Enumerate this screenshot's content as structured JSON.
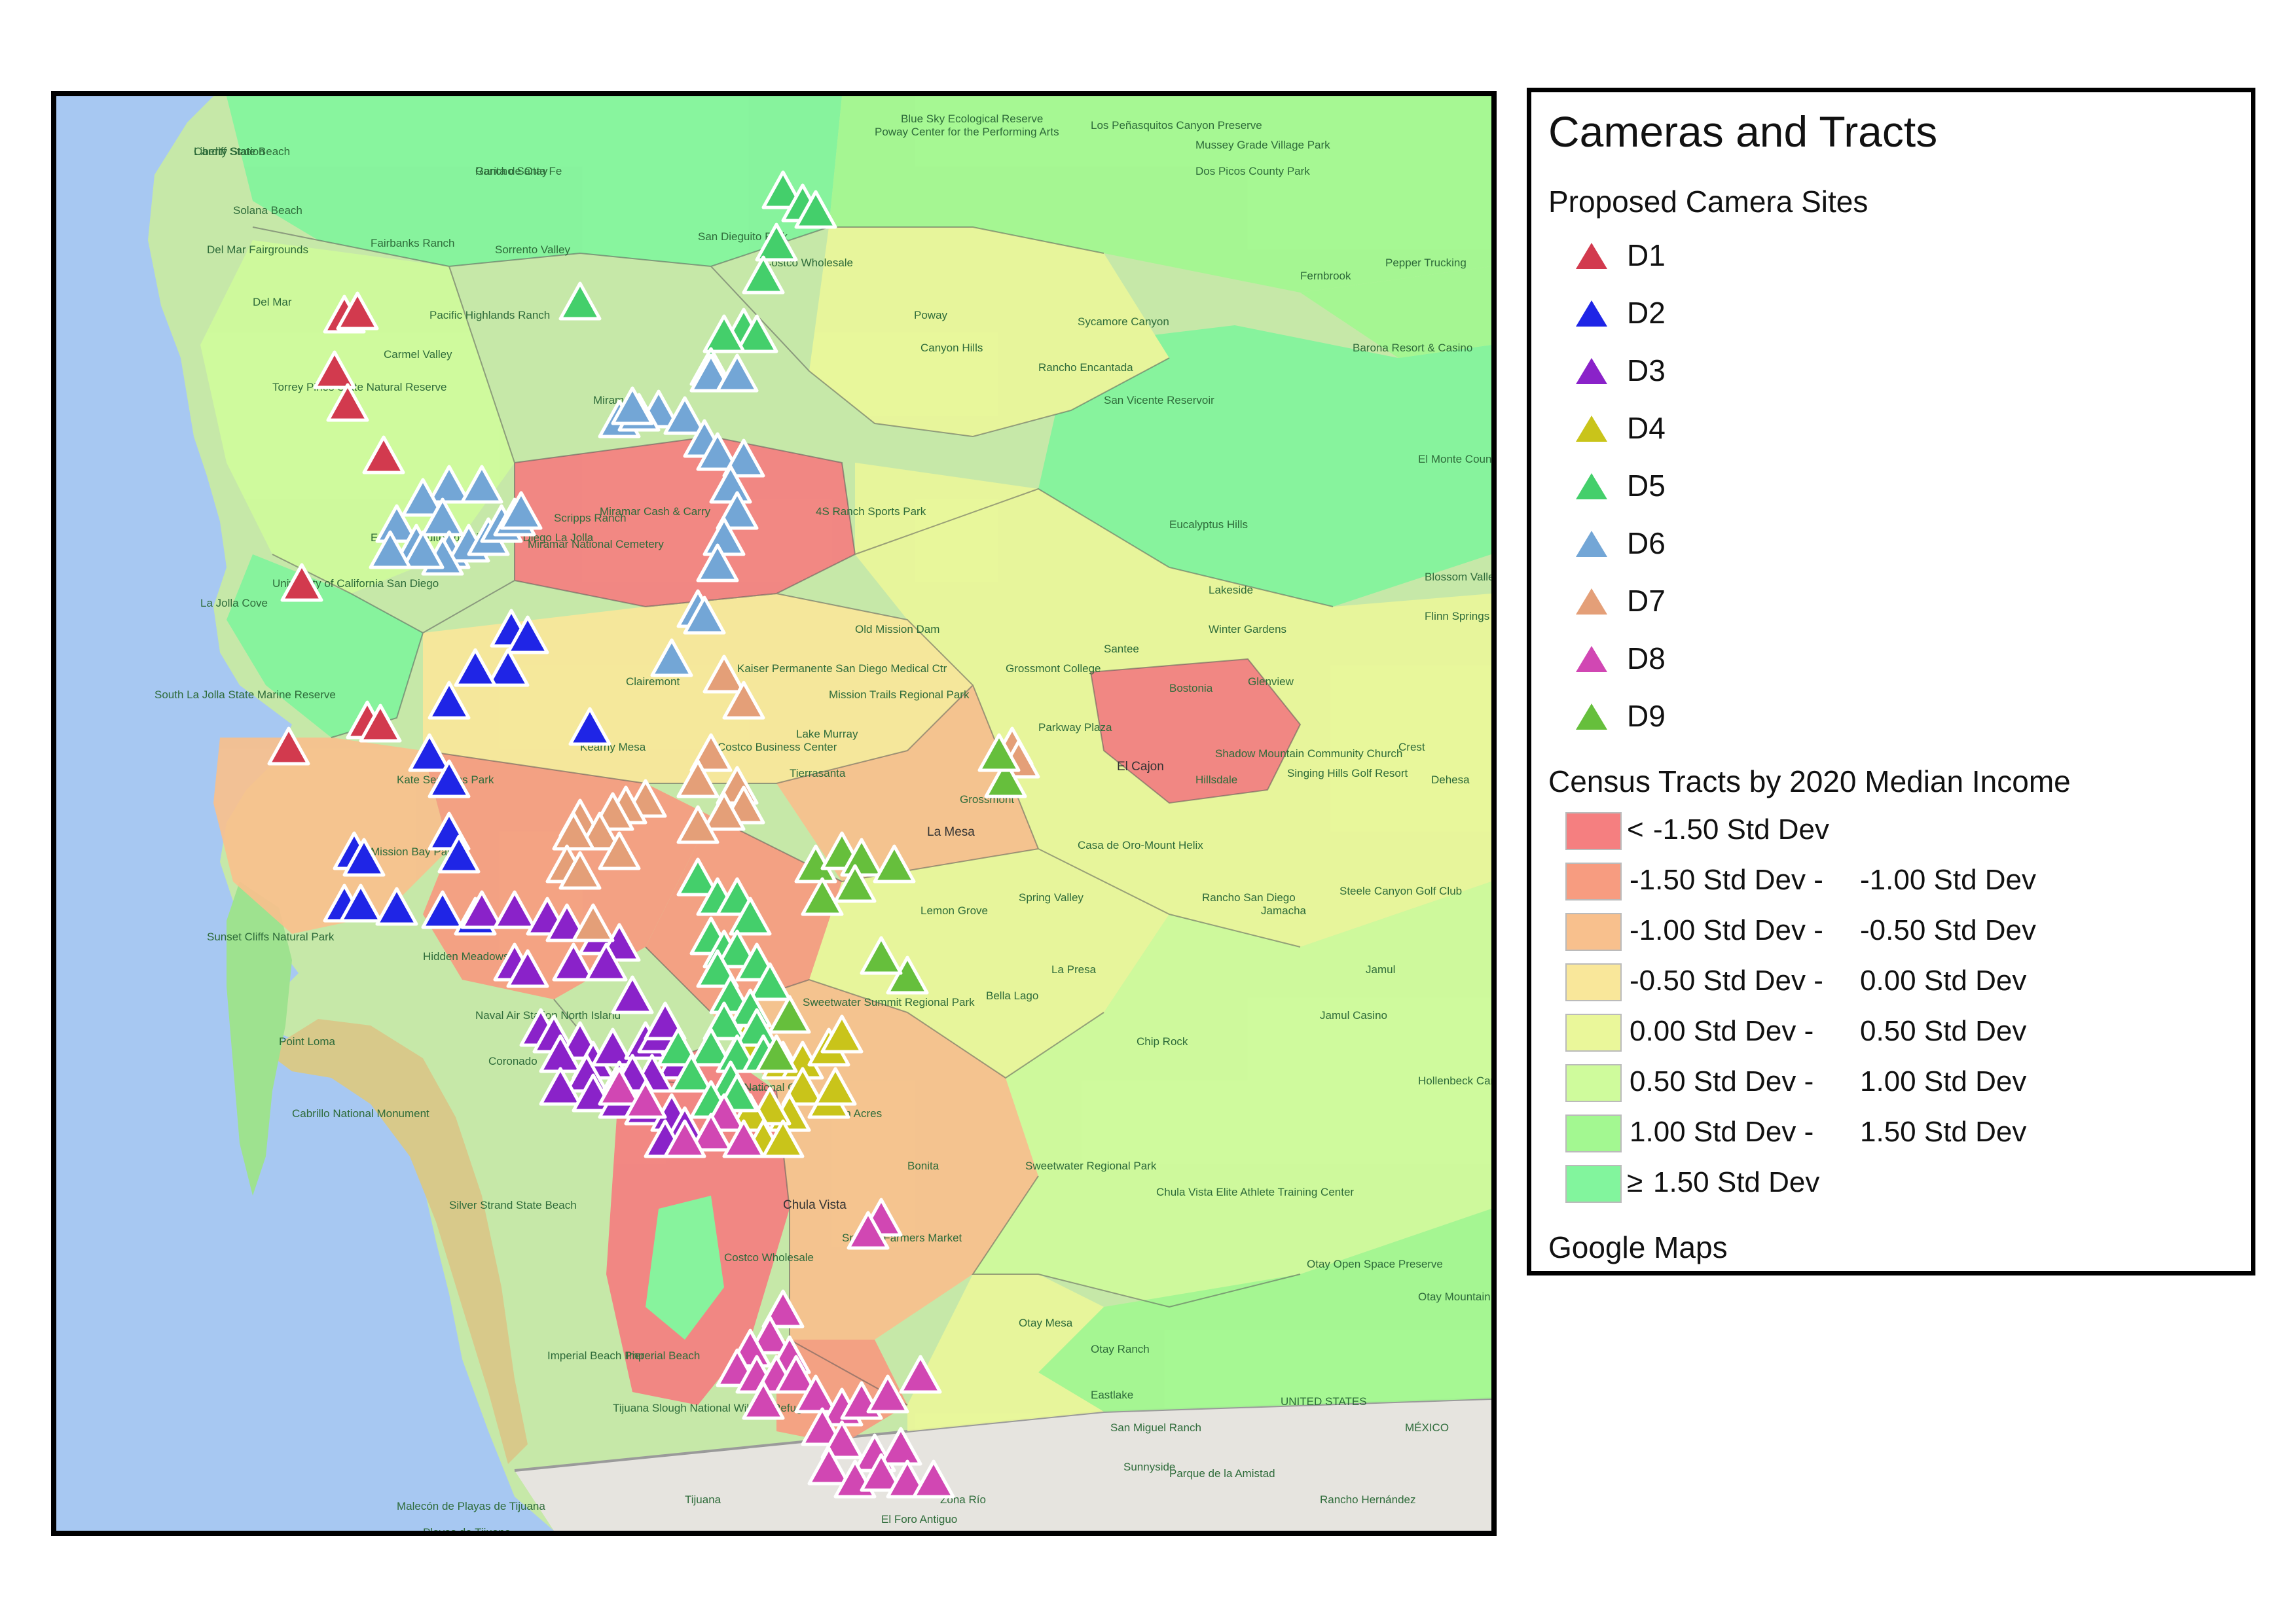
{
  "legend": {
    "title": "Cameras and Tracts",
    "cameras_heading": "Proposed Camera Sites",
    "cameras": [
      {
        "label": "D1",
        "color": "#d23a4e"
      },
      {
        "label": "D2",
        "color": "#1f25e6"
      },
      {
        "label": "D3",
        "color": "#8a22c9"
      },
      {
        "label": "D4",
        "color": "#c9c41a"
      },
      {
        "label": "D5",
        "color": "#44cf6b"
      },
      {
        "label": "D6",
        "color": "#73a6d6"
      },
      {
        "label": "D7",
        "color": "#e49f78"
      },
      {
        "label": "D8",
        "color": "#d147b3"
      },
      {
        "label": "D9",
        "color": "#66bf3c"
      }
    ],
    "tracts_heading": "Census Tracts by 2020 Median Income",
    "income_classes": [
      {
        "symbol": "<",
        "low": "-1.50 Std Dev",
        "high": "",
        "color": "#f57f80"
      },
      {
        "symbol": "",
        "low": "-1.50 Std Dev -",
        "high": "-1.00 Std Dev",
        "color": "#f79c80"
      },
      {
        "symbol": "",
        "low": "-1.00 Std Dev -",
        "high": "-0.50 Std Dev",
        "color": "#f8c08d"
      },
      {
        "symbol": "",
        "low": "-0.50 Std Dev -",
        "high": "0.00 Std Dev",
        "color": "#f9e79a"
      },
      {
        "symbol": "",
        "low": "0.00 Std Dev -",
        "high": "0.50 Std Dev",
        "color": "#eaf79a"
      },
      {
        "symbol": "",
        "low": "0.50 Std Dev -",
        "high": "1.00 Std Dev",
        "color": "#cffb9c"
      },
      {
        "symbol": "",
        "low": "1.00 Std Dev -",
        "high": "1.50 Std Dev",
        "color": "#a3f891"
      },
      {
        "symbol": "≥",
        "low": "1.50 Std Dev",
        "high": "",
        "color": "#82f59d"
      }
    ],
    "source": "Google Maps"
  },
  "map_labels": [
    "Rancho Santa Fe",
    "Cardiff State Beach",
    "Solana Beach",
    "Del Mar Fairgrounds",
    "Del Mar",
    "Torrey Pines State Natural Reserve",
    "La Jolla Cove",
    "South La Jolla State Marine Reserve",
    "Miramar National Cemetery",
    "Costco Wholesale",
    "Poway",
    "Blue Sky Ecological Reserve",
    "Dos Picos County Park",
    "Fernbrook",
    "Barona Resort & Casino",
    "San Vicente Reservoir",
    "El Monte County Park",
    "Eucalyptus Hills",
    "Lakeside",
    "Blossom Valley",
    "Flinn Springs",
    "Santee",
    "Winter Gardens",
    "Glenview",
    "Crest",
    "Dehesa",
    "Bostonia",
    "El Cajon",
    "Hillsdale",
    "Grossmont College",
    "Parkway Plaza",
    "Shadow Mountain Community Church",
    "Singing Hills Golf Resort",
    "Mission Trails Regional Park",
    "Kaiser Permanente San Diego Medical Ctr",
    "Old Mission Dam",
    "La Mesa",
    "Casa de Oro-Mount Helix",
    "Rancho San Diego",
    "Jamacha",
    "Spring Valley",
    "Lemon Grove",
    "La Presa",
    "Jamul",
    "Jamul Casino",
    "Hollenbeck Canyon Wildlife Area",
    "Sunset Cliffs Natural Park",
    "Naval Air Station North Island",
    "Point Loma",
    "Cabrillo National Monument",
    "Coronado",
    "National City",
    "Lincoln Acres",
    "Bonita",
    "Chula Vista",
    "Sweetwater Regional Park",
    "Chula Vista Elite Athlete Training Center",
    "Otay Open Space Preserve",
    "Otay Mountain Wilderness",
    "Silver Strand State Beach",
    "Imperial Beach",
    "Imperial Beach Pier",
    "Tijuana Slough National Wildlife Refuge",
    "Costco Wholesale",
    "Sprouts Farmers Market",
    "Tijuana",
    "Playas de Tijuana",
    "Malecón de Playas de Tijuana",
    "UNITED STATES",
    "MÉXICO",
    "Parque de la Amistad",
    "Rancho Hernández",
    "Zona Río",
    "El Foro Antiguo",
    "Poway Center for the Performing Arts",
    "Mussey Grade Village Park",
    "Miramar Cash & Carry",
    "Embassy Suites by Hilton San Diego La Jolla",
    "University of California San Diego",
    "Kate Sessions Park",
    "Costco Business Center",
    "Steele Canyon Golf Club",
    "Pepper Trucking",
    "Canyon Hills",
    "Rancho Encantada",
    "Sycamore Canyon",
    "Kearny Mesa",
    "Clairemont",
    "Mission Bay Park",
    "Lake Murray",
    "Grossmont",
    "Tierrasanta",
    "Carmel Valley",
    "Pacific Highlands Ranch",
    "Sorrento Valley",
    "Fairbanks Ranch",
    "San Dieguito Park",
    "4S Ranch Sports Park",
    "Scripps Ranch",
    "Miramar",
    "Los Peñasquitos Canyon Preserve",
    "Chip Rock",
    "Bella Lago",
    "Sweetwater Summit Regional Park",
    "Sunnyside",
    "Otay Mesa",
    "Otay Ranch",
    "Eastlake",
    "San Miguel Ranch",
    "Hidden Meadows",
    "Garita de Otay",
    "Liberty Station"
  ],
  "colors": {
    "water": "#a7c8f2",
    "low": "#f57f80",
    "mid_low": "#f79c80",
    "midlow2": "#f8c08d",
    "below": "#f9e79a",
    "above": "#eaf79a",
    "high1": "#cffb9c",
    "high2": "#a3f891",
    "high3": "#82f59d",
    "terrain": "#c3e6a5",
    "mexico": "#e8e6e1",
    "marker_stroke": "#ffffff"
  }
}
